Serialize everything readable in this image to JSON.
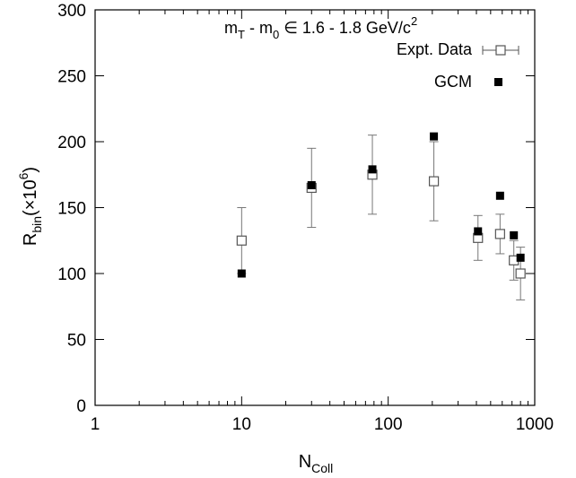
{
  "chart_data": {
    "type": "scatter",
    "title": "",
    "annotation": {
      "pre": "m",
      "sub1": "T",
      "mid": " - m",
      "sub2": "0",
      "post": " ∈  1.6 - 1.8 GeV/c",
      "sup": "2"
    },
    "xlabel": {
      "main": "N",
      "sub": "Coll"
    },
    "ylabel": {
      "main": "R",
      "sub": "bin",
      "paren_open": "(×10",
      "sup": "6",
      "paren_close": ")"
    },
    "x_scale": "log",
    "xlim": [
      1,
      1000
    ],
    "ylim": [
      0,
      300
    ],
    "x_ticks": [
      1,
      10,
      100,
      1000
    ],
    "x_tick_labels": [
      "1",
      "10",
      "100",
      "1000"
    ],
    "y_ticks": [
      0,
      50,
      100,
      150,
      200,
      250,
      300
    ],
    "y_tick_labels": [
      "0",
      "50",
      "100",
      "150",
      "200",
      "250",
      "300"
    ],
    "grid": false,
    "legend_position": "top-right",
    "series": [
      {
        "name": "Expt. Data",
        "marker": "open-square",
        "error_bars": true,
        "points": [
          {
            "x": 10,
            "y": 125,
            "err": 25
          },
          {
            "x": 30,
            "y": 165,
            "err": 30
          },
          {
            "x": 78,
            "y": 175,
            "err": 30
          },
          {
            "x": 205,
            "y": 170,
            "err": 30
          },
          {
            "x": 410,
            "y": 127,
            "err": 17
          },
          {
            "x": 580,
            "y": 130,
            "err": 15
          },
          {
            "x": 720,
            "y": 110,
            "err": 15
          },
          {
            "x": 800,
            "y": 100,
            "err": 20
          }
        ]
      },
      {
        "name": "GCM",
        "marker": "filled-square",
        "error_bars": false,
        "points": [
          {
            "x": 10,
            "y": 100
          },
          {
            "x": 30,
            "y": 167
          },
          {
            "x": 78,
            "y": 179
          },
          {
            "x": 205,
            "y": 204
          },
          {
            "x": 410,
            "y": 132
          },
          {
            "x": 580,
            "y": 159
          },
          {
            "x": 720,
            "y": 129
          },
          {
            "x": 800,
            "y": 112
          }
        ]
      }
    ]
  }
}
